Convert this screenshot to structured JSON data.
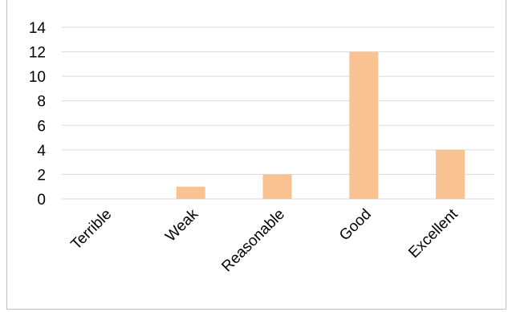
{
  "chart_data": {
    "type": "bar",
    "title": "",
    "xlabel": "",
    "ylabel": "",
    "categories": [
      "Terrible",
      "Weak",
      "Reasonable",
      "Good",
      "Excellent"
    ],
    "values": [
      0,
      1,
      2,
      12,
      4
    ],
    "ylim": [
      0,
      14
    ],
    "yticks": [
      0,
      2,
      4,
      6,
      8,
      10,
      12,
      14
    ],
    "grid": true,
    "legend": "none",
    "bar_color": "#f8c291"
  }
}
